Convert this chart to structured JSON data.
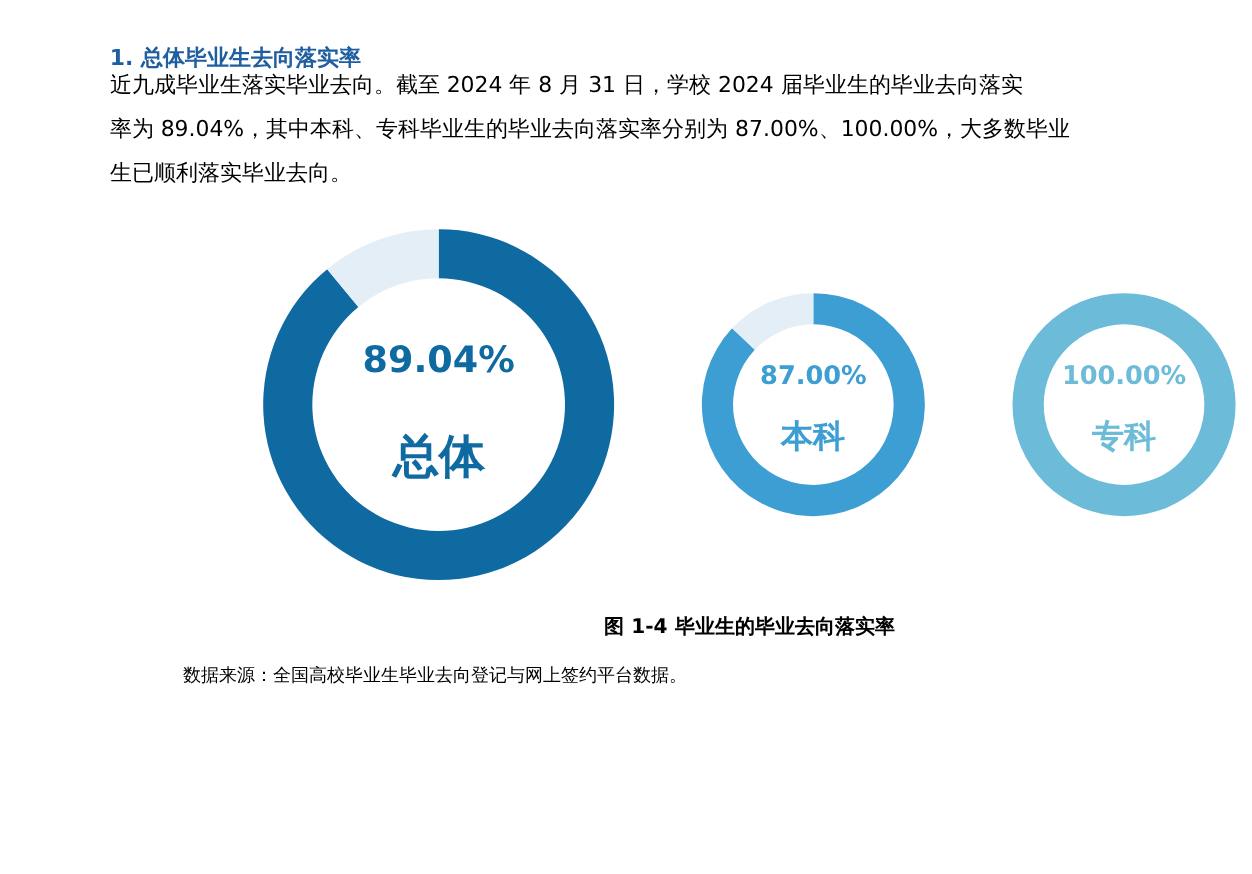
{
  "chart_data": [
    {
      "type": "donut",
      "title": "1.    总体毕业生去向落实率",
      "subtitle": "近九成毕业生落实毕业去向。截至 2024 年 8 月 31 日，学校 2024 届毕业生的毕业去向落实率为 89.04%，其中本科、专科毕业生的毕业去向落实率分别为 87.00%、100.00%，大多数毕业生已顺利落实毕业去向。",
      "categories": [
        "总体",
        null
      ],
      "values": [
        89.04,
        10.96
      ],
      "colors": [
        "#0e6aa1",
        "#e3eef7"
      ],
      "value_labels": [
        "89.04%",
        null
      ],
      "annotations": [
        "图 1-4      毕业生的毕业去向落实率",
        "数据来源：全国高校毕业生毕业去向登记与网上签约平台数据。"
      ]
    },
    {
      "type": "donut",
      "categories": [
        "本科",
        null
      ],
      "values": [
        87.0,
        13.0
      ],
      "colors": [
        "#3d9ed3",
        "#e3eef7"
      ],
      "value_labels": [
        "87.00%",
        null
      ]
    },
    {
      "type": "donut",
      "categories": [
        "专科",
        null
      ],
      "values": [
        100.0,
        0.0
      ],
      "colors": [
        "#6cbbd9",
        "#e3eef7"
      ],
      "value_labels": [
        "100.00%",
        null
      ]
    }
  ]
}
